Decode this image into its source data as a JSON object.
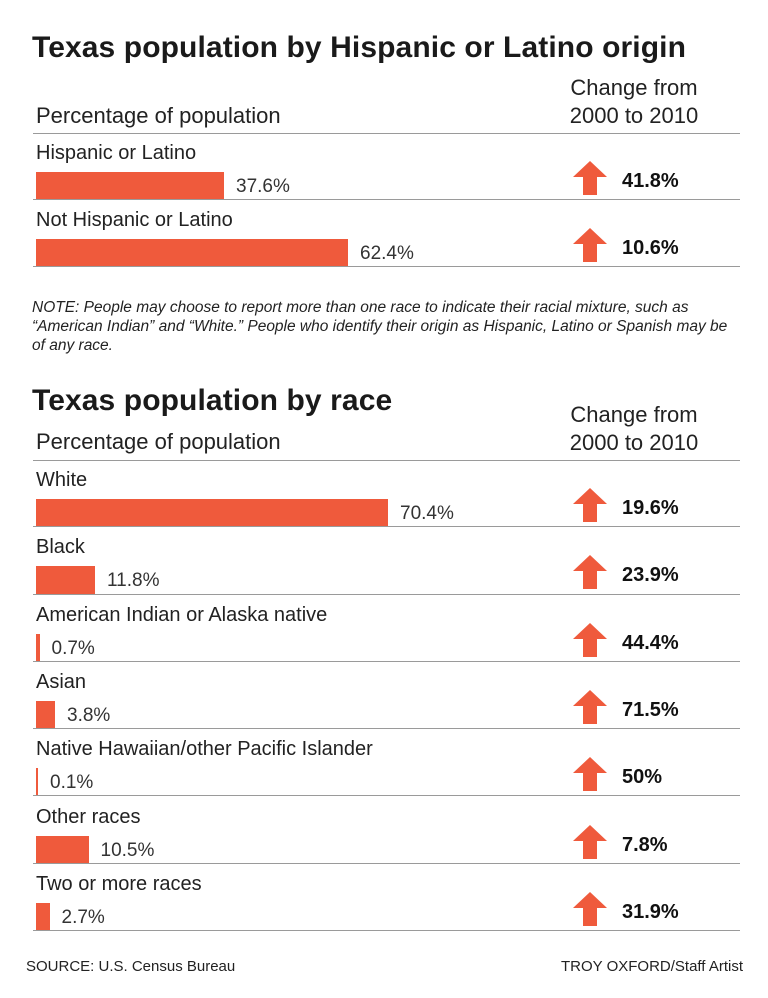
{
  "colors": {
    "bar": "#ef5a3c",
    "arrow": "#ef5a3c"
  },
  "chart_data": [
    {
      "type": "bar",
      "title": "Texas population by Hispanic or Latino origin",
      "value_header": "Percentage of population",
      "change_header": "Change from 2000 to 2010",
      "change_header_lines": [
        "Change from",
        "2000 to 2010"
      ],
      "categories": [
        "Hispanic or Latino",
        "Not Hispanic or Latino"
      ],
      "values": [
        37.6,
        62.4
      ],
      "value_labels": [
        "37.6%",
        "62.4%"
      ],
      "changes": [
        "41.8%",
        "10.6%"
      ],
      "change_direction": [
        "up",
        "up"
      ],
      "xlim": [
        0,
        100
      ]
    },
    {
      "type": "bar",
      "title": "Texas population by race",
      "value_header": "Percentage of population",
      "change_header": "Change from 2000 to 2010",
      "change_header_lines": [
        "Change from",
        "2000 to 2010"
      ],
      "categories": [
        "White",
        "Black",
        "American Indian or Alaska native",
        "Asian",
        "Native Hawaiian/other Pacific Islander",
        "Other races",
        "Two or more races"
      ],
      "values": [
        70.4,
        11.8,
        0.7,
        3.8,
        0.1,
        10.5,
        2.7
      ],
      "value_labels": [
        "70.4%",
        "11.8%",
        "0.7%",
        "3.8%",
        "0.1%",
        "10.5%",
        "2.7%"
      ],
      "changes": [
        "19.6%",
        "23.9%",
        "44.4%",
        "71.5%",
        "50%",
        "7.8%",
        "31.9%"
      ],
      "change_direction": [
        "up",
        "up",
        "up",
        "up",
        "up",
        "up",
        "up"
      ],
      "xlim": [
        0,
        100
      ]
    }
  ],
  "note": "NOTE: People may choose to report more than one race to indicate their racial mixture, such as “American Indian” and “White.” People who identify their origin as Hispanic, Latino or Spanish may be of any race.",
  "footer": {
    "source": "SOURCE: U.S. Census Bureau",
    "credit": "TROY OXFORD/Staff Artist"
  }
}
